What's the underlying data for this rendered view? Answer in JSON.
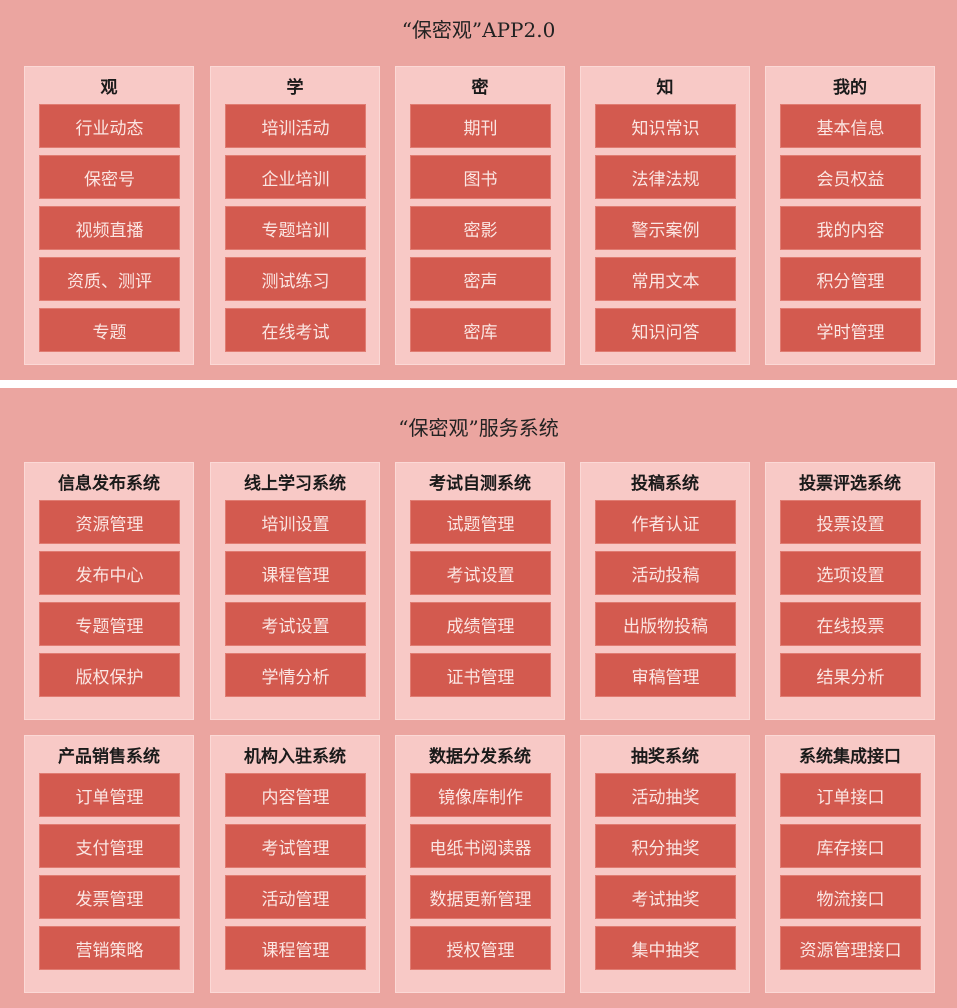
{
  "app_section": {
    "title": "“保密观”APP2.0",
    "columns": [
      {
        "title": "观",
        "items": [
          "行业动态",
          "保密号",
          "视频直播",
          "资质、测评",
          "专题"
        ]
      },
      {
        "title": "学",
        "items": [
          "培训活动",
          "企业培训",
          "专题培训",
          "测试练习",
          "在线考试"
        ]
      },
      {
        "title": "密",
        "items": [
          "期刊",
          "图书",
          "密影",
          "密声",
          "密库"
        ]
      },
      {
        "title": "知",
        "items": [
          "知识常识",
          "法律法规",
          "警示案例",
          "常用文本",
          "知识问答"
        ]
      },
      {
        "title": "我的",
        "items": [
          "基本信息",
          "会员权益",
          "我的内容",
          "积分管理",
          "学时管理"
        ]
      }
    ]
  },
  "service_section": {
    "title": "“保密观”服务系统",
    "rows": [
      [
        {
          "title": "信息发布系统",
          "items": [
            "资源管理",
            "发布中心",
            "专题管理",
            "版权保护"
          ]
        },
        {
          "title": "线上学习系统",
          "items": [
            "培训设置",
            "课程管理",
            "考试设置",
            "学情分析"
          ]
        },
        {
          "title": "考试自测系统",
          "items": [
            "试题管理",
            "考试设置",
            "成绩管理",
            "证书管理"
          ]
        },
        {
          "title": "投稿系统",
          "items": [
            "作者认证",
            "活动投稿",
            "出版物投稿",
            "审稿管理"
          ]
        },
        {
          "title": "投票评选系统",
          "items": [
            "投票设置",
            "选项设置",
            "在线投票",
            "结果分析"
          ]
        }
      ],
      [
        {
          "title": "产品销售系统",
          "items": [
            "订单管理",
            "支付管理",
            "发票管理",
            "营销策略"
          ]
        },
        {
          "title": "机构入驻系统",
          "items": [
            "内容管理",
            "考试管理",
            "活动管理",
            "课程管理"
          ]
        },
        {
          "title": "数据分发系统",
          "items": [
            "镜像库制作",
            "电纸书阅读器",
            "数据更新管理",
            "授权管理"
          ]
        },
        {
          "title": "抽奖系统",
          "items": [
            "活动抽奖",
            "积分抽奖",
            "考试抽奖",
            "集中抽奖"
          ]
        },
        {
          "title": "系统集成接口",
          "items": [
            "订单接口",
            "库存接口",
            "物流接口",
            "资源管理接口"
          ]
        }
      ]
    ]
  },
  "colors": {
    "background": "#eba5a0",
    "panel": "#f8c9c6",
    "button": "#d35a4f",
    "button_text": "#fbe6e3"
  }
}
